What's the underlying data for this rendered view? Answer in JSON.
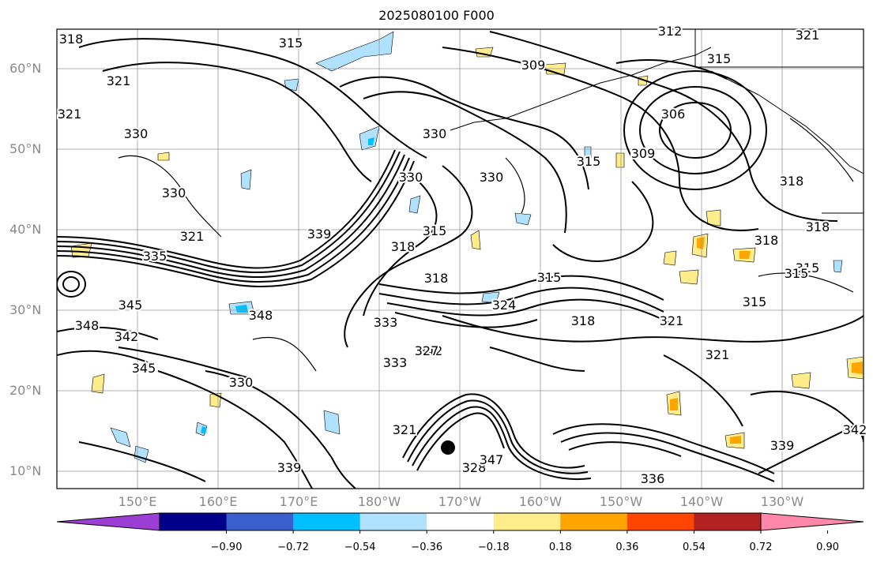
{
  "title": "2025080100 F000",
  "lat_labels": [
    "60°N",
    "50°N",
    "40°N",
    "30°N",
    "20°N",
    "10°N"
  ],
  "lon_labels": [
    "150°E",
    "160°E",
    "170°E",
    "180°W",
    "170°W",
    "160°W",
    "150°W",
    "140°W",
    "130°W"
  ],
  "colorbar": {
    "ticks": [
      "−0.90",
      "−0.72",
      "−0.54",
      "−0.36",
      "−0.18",
      "0.18",
      "0.36",
      "0.54",
      "0.72",
      "0.90"
    ],
    "colors": [
      "#9b3fd4",
      "#00008b",
      "#3a5fcd",
      "#00bfff",
      "#b0e2ff",
      "#ffffff",
      "#ffec8b",
      "#ffa500",
      "#ff4500",
      "#b22222",
      "#ff88aa"
    ]
  },
  "contour_labels": [
    "318",
    "315",
    "312",
    "321",
    "315",
    "309",
    "321",
    "321",
    "330",
    "306",
    "330",
    "309",
    "315",
    "330",
    "330",
    "318",
    "330",
    "321",
    "315",
    "318",
    "318",
    "335",
    "339",
    "315",
    "318",
    "315",
    "318",
    "315",
    "348",
    "345",
    "348",
    "342",
    "324",
    "318",
    "321",
    "315",
    "333",
    "342",
    "327",
    "333",
    "345",
    "330",
    "321",
    "321",
    "339",
    "336",
    "342",
    "328",
    "347",
    "339"
  ]
}
